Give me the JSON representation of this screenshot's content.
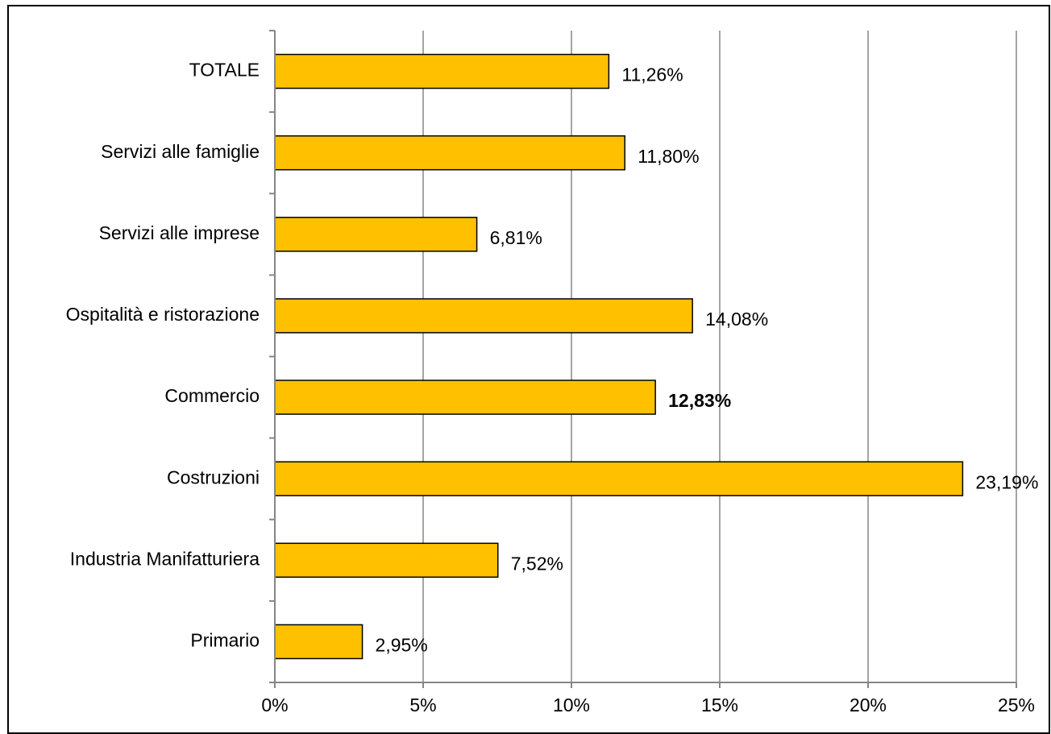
{
  "chart_data": {
    "type": "bar",
    "orientation": "horizontal",
    "title": "",
    "xlabel": "",
    "ylabel": "",
    "categories": [
      "TOTALE",
      "Servizi alle famiglie",
      "Servizi alle imprese",
      "Ospitalità e ristorazione",
      "Commercio",
      "Costruzioni",
      "Industria Manifatturiera",
      "Primario"
    ],
    "values": [
      11.26,
      11.8,
      6.81,
      14.08,
      12.83,
      23.19,
      7.52,
      2.95
    ],
    "value_labels": [
      "11,26%",
      "11,80%",
      "6,81%",
      "14,08%",
      "12,83%",
      "23,19%",
      "7,52%",
      "2,95%"
    ],
    "highlighted_label": "Commercio",
    "xlim": [
      0,
      25
    ],
    "x_ticks": [
      0,
      5,
      10,
      15,
      20,
      25
    ],
    "x_tick_labels": [
      "0%",
      "5%",
      "10%",
      "15%",
      "20%",
      "25%"
    ],
    "grid": "vertical",
    "legend": "none",
    "colors": {
      "bar_fill": "#FFC000",
      "bar_stroke": "#000000",
      "gridline": "#868686",
      "highlight_label": "#FF0000",
      "text": "#000000"
    }
  }
}
